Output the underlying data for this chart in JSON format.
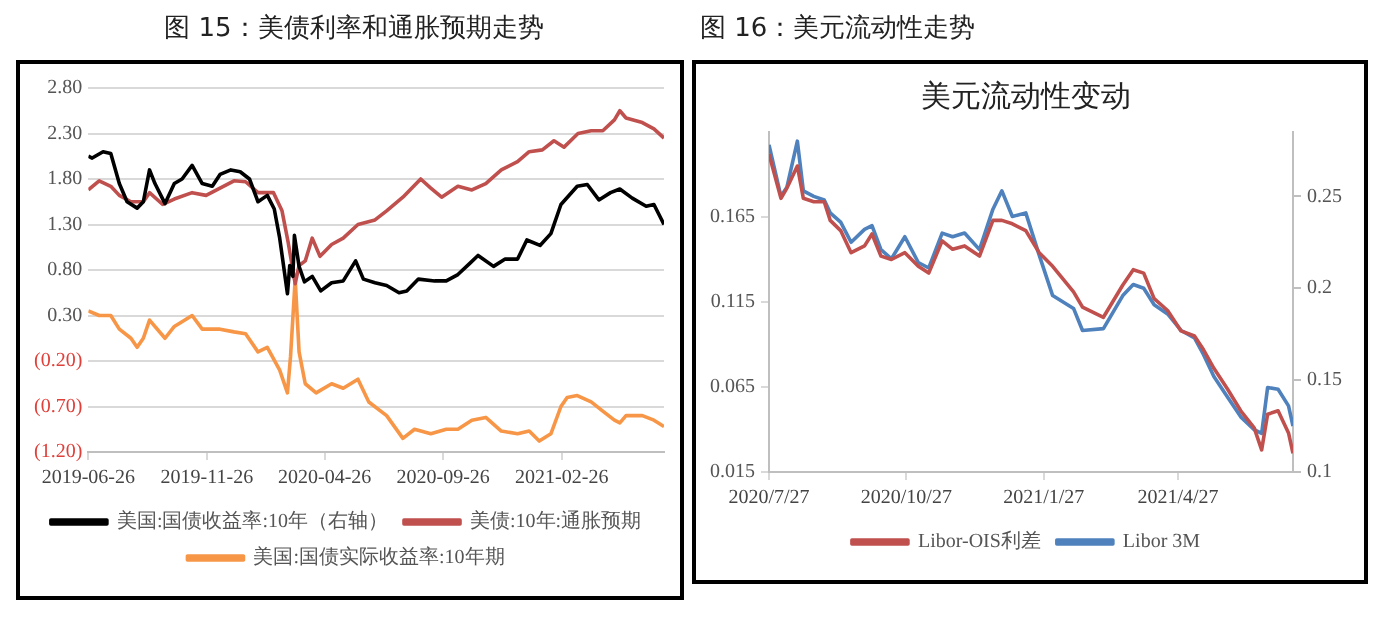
{
  "chart_data": [
    {
      "type": "line",
      "title": "图 15：美债利率和通胀预期走势",
      "xlim": [
        "2019-06-26",
        "2021-07-08"
      ],
      "xticks": [
        "2019-06-26",
        "2019-11-26",
        "2020-04-26",
        "2020-09-26",
        "2021-02-26"
      ],
      "ylim": [
        -1.2,
        2.8
      ],
      "yticks": [
        {
          "value": 2.8,
          "label": "2.80"
        },
        {
          "value": 2.3,
          "label": "2.30"
        },
        {
          "value": 1.8,
          "label": "1.80"
        },
        {
          "value": 1.3,
          "label": "1.30"
        },
        {
          "value": 0.8,
          "label": "0.80"
        },
        {
          "value": 0.3,
          "label": "0.30"
        },
        {
          "value": -0.2,
          "label": "(0.20)"
        },
        {
          "value": -0.7,
          "label": "(0.70)"
        },
        {
          "value": -1.2,
          "label": "(1.20)"
        }
      ],
      "grid": "y",
      "legend": "bottom",
      "series": [
        {
          "name": "美国:国债收益率:10年（右轴）",
          "color": "#000000",
          "x": [
            "2019-06-26",
            "2019-07-01",
            "2019-07-15",
            "2019-07-25",
            "2019-08-05",
            "2019-08-15",
            "2019-08-28",
            "2019-09-05",
            "2019-09-13",
            "2019-09-20",
            "2019-10-03",
            "2019-10-15",
            "2019-10-25",
            "2019-11-07",
            "2019-11-20",
            "2019-12-03",
            "2019-12-13",
            "2019-12-27",
            "2020-01-08",
            "2020-01-20",
            "2020-01-31",
            "2020-02-12",
            "2020-02-21",
            "2020-02-28",
            "2020-03-09",
            "2020-03-12",
            "2020-03-16",
            "2020-03-18",
            "2020-03-24",
            "2020-03-31",
            "2020-04-10",
            "2020-04-21",
            "2020-05-05",
            "2020-05-20",
            "2020-06-05",
            "2020-06-15",
            "2020-06-30",
            "2020-07-15",
            "2020-07-31",
            "2020-08-10",
            "2020-08-25",
            "2020-09-15",
            "2020-09-30",
            "2020-10-15",
            "2020-10-30",
            "2020-11-10",
            "2020-11-30",
            "2020-12-15",
            "2020-12-31",
            "2021-01-12",
            "2021-01-29",
            "2021-02-12",
            "2021-02-25",
            "2021-03-18",
            "2021-03-31",
            "2021-04-15",
            "2021-04-30",
            "2021-05-12",
            "2021-05-28",
            "2021-06-15",
            "2021-06-25",
            "2021-07-08"
          ],
          "values": [
            2.05,
            2.03,
            2.1,
            2.08,
            1.75,
            1.55,
            1.48,
            1.55,
            1.9,
            1.75,
            1.53,
            1.75,
            1.8,
            1.95,
            1.75,
            1.72,
            1.85,
            1.9,
            1.88,
            1.8,
            1.55,
            1.62,
            1.47,
            1.15,
            0.54,
            0.85,
            0.73,
            1.18,
            0.84,
            0.67,
            0.73,
            0.57,
            0.66,
            0.68,
            0.9,
            0.7,
            0.66,
            0.63,
            0.55,
            0.57,
            0.7,
            0.68,
            0.68,
            0.75,
            0.87,
            0.96,
            0.84,
            0.92,
            0.92,
            1.13,
            1.07,
            1.2,
            1.52,
            1.72,
            1.74,
            1.57,
            1.65,
            1.69,
            1.59,
            1.5,
            1.52,
            1.3
          ]
        },
        {
          "name": "美债:10年:通胀预期",
          "color": "#c0504d",
          "x": [
            "2019-06-26",
            "2019-07-10",
            "2019-07-25",
            "2019-08-05",
            "2019-08-20",
            "2019-09-05",
            "2019-09-13",
            "2019-09-30",
            "2019-10-15",
            "2019-11-07",
            "2019-11-25",
            "2019-12-13",
            "2019-12-31",
            "2020-01-15",
            "2020-01-31",
            "2020-02-20",
            "2020-03-02",
            "2020-03-10",
            "2020-03-19",
            "2020-03-24",
            "2020-04-01",
            "2020-04-10",
            "2020-04-20",
            "2020-05-05",
            "2020-05-20",
            "2020-06-08",
            "2020-06-30",
            "2020-07-15",
            "2020-08-05",
            "2020-08-28",
            "2020-09-10",
            "2020-09-24",
            "2020-10-15",
            "2020-11-02",
            "2020-11-20",
            "2020-12-10",
            "2020-12-31",
            "2021-01-15",
            "2021-02-01",
            "2021-02-16",
            "2021-03-01",
            "2021-03-19",
            "2021-04-05",
            "2021-04-20",
            "2021-05-05",
            "2021-05-12",
            "2021-05-20",
            "2021-06-10",
            "2021-06-25",
            "2021-07-08"
          ],
          "values": [
            1.68,
            1.78,
            1.72,
            1.62,
            1.55,
            1.55,
            1.65,
            1.52,
            1.58,
            1.65,
            1.62,
            1.7,
            1.78,
            1.77,
            1.65,
            1.65,
            1.45,
            1.1,
            0.65,
            0.85,
            0.9,
            1.15,
            0.95,
            1.08,
            1.15,
            1.3,
            1.35,
            1.45,
            1.6,
            1.8,
            1.7,
            1.6,
            1.72,
            1.68,
            1.75,
            1.9,
            1.99,
            2.1,
            2.12,
            2.22,
            2.15,
            2.3,
            2.33,
            2.33,
            2.45,
            2.55,
            2.47,
            2.42,
            2.35,
            2.25
          ]
        },
        {
          "name": "美国:国债实际收益率:10年期",
          "color": "#f79646",
          "x": [
            "2019-06-26",
            "2019-07-10",
            "2019-07-25",
            "2019-08-05",
            "2019-08-20",
            "2019-08-28",
            "2019-09-05",
            "2019-09-13",
            "2019-10-03",
            "2019-10-15",
            "2019-11-07",
            "2019-11-20",
            "2019-12-13",
            "2019-12-31",
            "2020-01-15",
            "2020-01-31",
            "2020-02-12",
            "2020-02-28",
            "2020-03-09",
            "2020-03-13",
            "2020-03-19",
            "2020-03-24",
            "2020-04-01",
            "2020-04-15",
            "2020-05-05",
            "2020-05-20",
            "2020-06-08",
            "2020-06-22",
            "2020-07-15",
            "2020-08-05",
            "2020-08-20",
            "2020-09-10",
            "2020-09-30",
            "2020-10-15",
            "2020-11-02",
            "2020-11-20",
            "2020-12-10",
            "2020-12-31",
            "2021-01-15",
            "2021-01-28",
            "2021-02-12",
            "2021-02-25",
            "2021-03-05",
            "2021-03-18",
            "2021-04-05",
            "2021-04-20",
            "2021-05-05",
            "2021-05-12",
            "2021-05-20",
            "2021-06-10",
            "2021-06-25",
            "2021-07-08"
          ],
          "values": [
            0.35,
            0.3,
            0.3,
            0.15,
            0.05,
            -0.05,
            0.05,
            0.25,
            0.05,
            0.18,
            0.3,
            0.15,
            0.15,
            0.12,
            0.1,
            -0.1,
            -0.05,
            -0.3,
            -0.55,
            -0.15,
            0.7,
            -0.1,
            -0.45,
            -0.55,
            -0.45,
            -0.5,
            -0.4,
            -0.65,
            -0.8,
            -1.05,
            -0.95,
            -1.0,
            -0.95,
            -0.95,
            -0.85,
            -0.82,
            -0.97,
            -1.0,
            -0.97,
            -1.08,
            -1.0,
            -0.7,
            -0.6,
            -0.58,
            -0.65,
            -0.75,
            -0.85,
            -0.88,
            -0.8,
            -0.8,
            -0.85,
            -0.92
          ]
        }
      ]
    },
    {
      "type": "line",
      "title": "图 16：美元流动性走势",
      "subtitle": "美元流动性变动",
      "x": [
        "2020-07-27",
        "2020-08-04",
        "2020-08-08",
        "2020-08-15",
        "2020-08-19",
        "2020-08-26",
        "2020-09-02",
        "2020-09-06",
        "2020-09-13",
        "2020-09-20",
        "2020-09-29",
        "2020-10-04",
        "2020-10-10",
        "2020-10-17",
        "2020-10-26",
        "2020-11-04",
        "2020-11-11",
        "2020-11-20",
        "2020-11-27",
        "2020-12-05",
        "2020-12-15",
        "2020-12-24",
        "2020-12-30",
        "2021-01-06",
        "2021-01-15",
        "2021-01-24",
        "2021-02-02",
        "2021-02-16",
        "2021-02-22",
        "2021-03-08",
        "2021-03-21",
        "2021-03-28",
        "2021-04-04",
        "2021-04-11",
        "2021-04-20",
        "2021-04-29",
        "2021-05-08",
        "2021-05-14",
        "2021-05-21",
        "2021-05-30",
        "2021-06-08",
        "2021-06-17",
        "2021-06-22",
        "2021-06-26",
        "2021-07-03",
        "2021-07-10",
        "2021-07-13"
      ],
      "xlim": [
        "2020-07-27",
        "2021-07-13"
      ],
      "xticks": [
        {
          "value": "2020-07-27",
          "label": "2020/7/27"
        },
        {
          "value": "2020-10-27",
          "label": "2020/10/27"
        },
        {
          "value": "2021-01-27",
          "label": "2021/1/27"
        },
        {
          "value": "2021-04-27",
          "label": "2021/4/27"
        }
      ],
      "ylim": [
        0.015,
        0.215
      ],
      "yticks": [
        0.015,
        0.065,
        0.115,
        0.165
      ],
      "y2lim": [
        0.1,
        0.285
      ],
      "y2ticks": [
        0.1,
        0.15,
        0.2,
        0.25
      ],
      "grid": false,
      "legend": "bottom",
      "series": [
        {
          "name": "Libor-OIS利差",
          "color": "#c0504d",
          "values": [
            0.202,
            0.176,
            0.182,
            0.195,
            0.176,
            0.174,
            0.174,
            0.163,
            0.157,
            0.144,
            0.148,
            0.155,
            0.142,
            0.14,
            0.144,
            0.136,
            0.132,
            0.151,
            0.146,
            0.148,
            0.142,
            0.163,
            0.163,
            0.161,
            0.157,
            0.144,
            0.136,
            0.121,
            0.112,
            0.106,
            0.125,
            0.134,
            0.132,
            0.117,
            0.11,
            0.098,
            0.095,
            0.087,
            0.076,
            0.064,
            0.051,
            0.041,
            0.028,
            0.049,
            0.051,
            0.038,
            0.026
          ]
        },
        {
          "name": "Libor 3M",
          "color": "#4f81bd",
          "axis": "y2",
          "values": [
            0.278,
            0.25,
            0.255,
            0.28,
            0.253,
            0.25,
            0.248,
            0.241,
            0.236,
            0.225,
            0.232,
            0.234,
            0.221,
            0.216,
            0.228,
            0.214,
            0.211,
            0.23,
            0.228,
            0.23,
            0.221,
            0.243,
            0.253,
            0.239,
            0.241,
            0.218,
            0.196,
            0.189,
            0.177,
            0.178,
            0.196,
            0.202,
            0.2,
            0.191,
            0.186,
            0.177,
            0.173,
            0.164,
            0.152,
            0.141,
            0.13,
            0.123,
            0.121,
            0.146,
            0.145,
            0.136,
            0.125
          ]
        }
      ]
    }
  ]
}
